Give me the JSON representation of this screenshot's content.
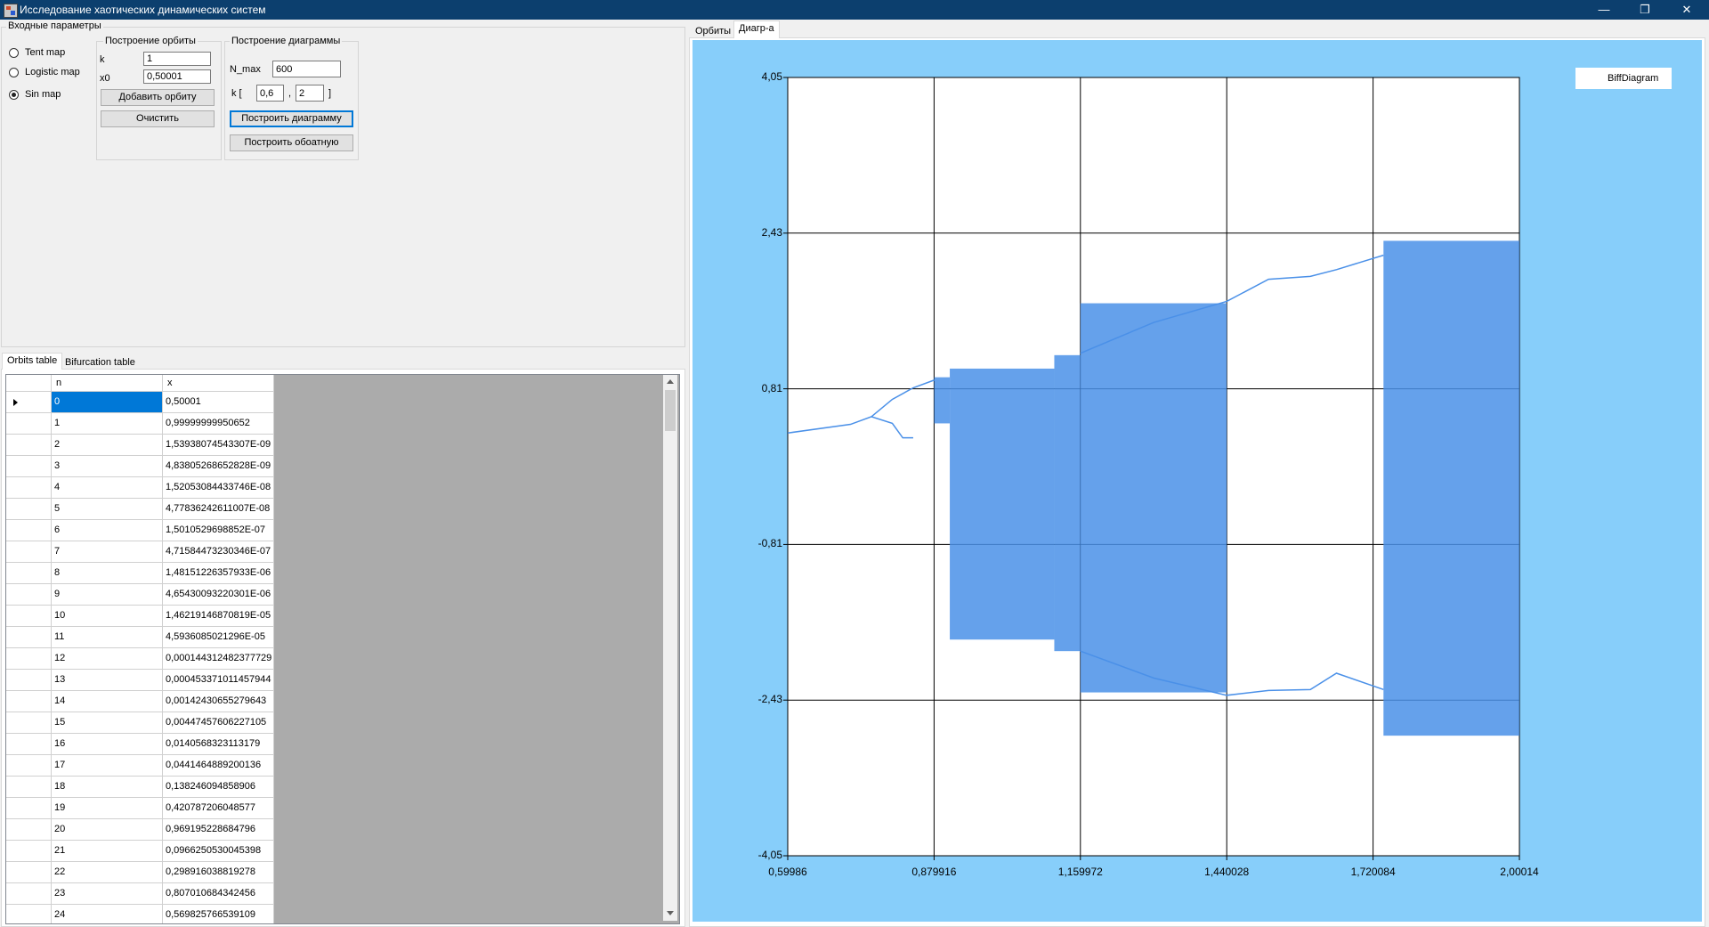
{
  "window": {
    "title": "Исследование хаотических динамических систем",
    "controls": {
      "minimize": "—",
      "maximize": "❐",
      "close": "✕"
    }
  },
  "input_params": {
    "group_title": "Входные параметры",
    "maps": [
      {
        "label": "Tent map",
        "selected": false
      },
      {
        "label": "Logistic map",
        "selected": false
      },
      {
        "label": "Sin map",
        "selected": true
      }
    ],
    "orbit": {
      "group_title": "Построение орбиты",
      "k_label": "k",
      "k_value": "1",
      "x0_label": "x0",
      "x0_value": "0,50001",
      "add_button": "Добавить орбиту",
      "clear_button": "Очистить"
    },
    "diagram": {
      "group_title": "Построение диаграммы",
      "nmax_label": "N_max",
      "nmax_value": "600",
      "k_label": "k [",
      "k_from": "0,6",
      "k_sep": ",",
      "k_to": "2",
      "k_close": "]",
      "build_button": "Построить диаграмму",
      "build_inverse_button": "Построить обоатную"
    }
  },
  "bottom_tabs": [
    "Orbits table",
    "Bifurcation table"
  ],
  "right_tabs": [
    "Орбиты",
    "Диагр-а"
  ],
  "table": {
    "columns": [
      "n",
      "x"
    ],
    "rows": [
      [
        "0",
        "0,50001"
      ],
      [
        "1",
        "0,99999999950652"
      ],
      [
        "2",
        "1,53938074543307E-09"
      ],
      [
        "3",
        "4,83805268652828E-09"
      ],
      [
        "4",
        "1,52053084433746E-08"
      ],
      [
        "5",
        "4,77836242611007E-08"
      ],
      [
        "6",
        "1,5010529698852E-07"
      ],
      [
        "7",
        "4,71584473230346E-07"
      ],
      [
        "8",
        "1,48151226357933E-06"
      ],
      [
        "9",
        "4,65430093220301E-06"
      ],
      [
        "10",
        "1,46219146870819E-05"
      ],
      [
        "11",
        "4,5936085021296E-05"
      ],
      [
        "12",
        "0,000144312482377729"
      ],
      [
        "13",
        "0,000453371011457944"
      ],
      [
        "14",
        "0,00142430655279643"
      ],
      [
        "15",
        "0,00447457606227105"
      ],
      [
        "16",
        "0,0140568323113179"
      ],
      [
        "17",
        "0,0441464889200136"
      ],
      [
        "18",
        "0,138246094858906"
      ],
      [
        "19",
        "0,420787206048577"
      ],
      [
        "20",
        "0,969195228684796"
      ],
      [
        "21",
        "0,0966250530045398"
      ],
      [
        "22",
        "0,298916038819278"
      ],
      [
        "23",
        "0,807010684342456"
      ],
      [
        "24",
        "0,569825766539109"
      ]
    ]
  },
  "colors": {
    "titlebar": "#0c3f6e",
    "chart_background": "#87cefa",
    "points": "#4a90e8",
    "selection": "#0078d7"
  },
  "chart_data": {
    "type": "scatter",
    "legend": [
      "BiffDiagram"
    ],
    "legend_position": "top-right",
    "grid": true,
    "x_ticks": [
      "0,59986",
      "0,879916",
      "1,159972",
      "1,440028",
      "1,720084",
      "2,00014"
    ],
    "y_ticks": [
      "4,05",
      "2,43",
      "0,81",
      "-0,81",
      "-2,43",
      "-4,05"
    ],
    "xlim": [
      0.59986,
      2.00014
    ],
    "ylim": [
      -4.05,
      4.05
    ],
    "series": [
      {
        "name": "BiffDiagram",
        "branch_lines": [
          [
            [
              0.6,
              0.35
            ],
            [
              0.72,
              0.44
            ],
            [
              0.76,
              0.52
            ],
            [
              0.8,
              0.45
            ],
            [
              0.82,
              0.3
            ],
            [
              0.84,
              0.3
            ]
          ],
          [
            [
              0.76,
              0.52
            ],
            [
              0.8,
              0.7
            ],
            [
              0.84,
              0.82
            ],
            [
              0.88,
              0.9
            ]
          ],
          [
            [
              1.16,
              1.18
            ],
            [
              1.3,
              1.5
            ],
            [
              1.44,
              1.72
            ],
            [
              1.52,
              1.95
            ],
            [
              1.6,
              1.98
            ],
            [
              1.65,
              2.05
            ],
            [
              1.74,
              2.2
            ]
          ],
          [
            [
              1.16,
              -1.92
            ],
            [
              1.3,
              -2.2
            ],
            [
              1.44,
              -2.38
            ],
            [
              1.52,
              -2.33
            ],
            [
              1.6,
              -2.32
            ],
            [
              1.65,
              -2.15
            ],
            [
              1.74,
              -2.32
            ]
          ]
        ],
        "chaotic_bands": [
          {
            "x": [
              0.88,
              0.91
            ],
            "ymin": 0.45,
            "ymax": 0.93
          },
          {
            "x": [
              0.91,
              1.11
            ],
            "ymin": -1.8,
            "ymax": 1.02
          },
          {
            "x": [
              1.11,
              1.16
            ],
            "ymin": -1.92,
            "ymax": 1.16
          },
          {
            "x": [
              1.16,
              1.44
            ],
            "ymin": -2.35,
            "ymax": 1.7
          },
          {
            "x": [
              1.74,
              2.0
            ],
            "ymin": -2.8,
            "ymax": 2.35
          }
        ]
      }
    ]
  }
}
